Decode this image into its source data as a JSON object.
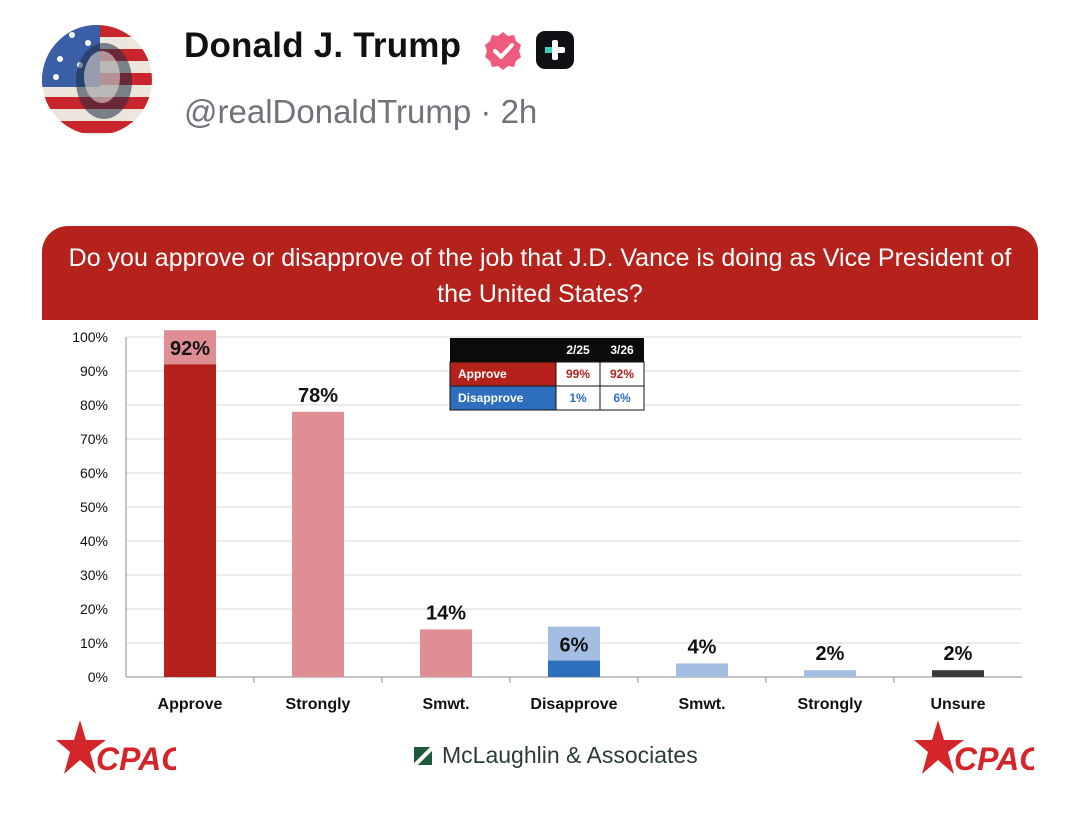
{
  "post": {
    "author_name": "Donald J. Trump",
    "handle": "@realDonaldTrump",
    "separator": "·",
    "time_ago": "2h",
    "verified_icon": "verified-badge-icon",
    "plus_icon": "plus-badge-icon"
  },
  "colors": {
    "banner": "#b5221c",
    "approve": "#b5221c",
    "approve_light": "#df8f94",
    "disapprove": "#2e6fbd",
    "disapprove_light": "#a3bde3",
    "unsure": "#3a3a3a"
  },
  "chart_data": {
    "type": "bar",
    "title": "Do you approve or disapprove of the job that J.D. Vance is doing as Vice President of the United States?",
    "categories": [
      "Approve",
      "Strongly",
      "Smwt.",
      "Disapprove",
      "Smwt.",
      "Strongly",
      "Unsure"
    ],
    "values": [
      92,
      78,
      14,
      6,
      4,
      2,
      2
    ],
    "value_labels": [
      "92%",
      "78%",
      "14%",
      "6%",
      "4%",
      "2%",
      "2%"
    ],
    "yticks": [
      "0%",
      "10%",
      "20%",
      "30%",
      "40%",
      "50%",
      "60%",
      "70%",
      "80%",
      "90%",
      "100%"
    ],
    "ylim": [
      0,
      100
    ],
    "grid": true,
    "inset_table": {
      "columns": [
        "2/25",
        "3/26"
      ],
      "rows": [
        {
          "label": "Approve",
          "values": [
            "99%",
            "92%"
          ]
        },
        {
          "label": "Disapprove",
          "values": [
            "1%",
            "6%"
          ]
        }
      ]
    }
  },
  "footer": {
    "left_logo": "CPAC",
    "center_text": "McLaughlin & Associates",
    "right_logo": "CPAC"
  }
}
